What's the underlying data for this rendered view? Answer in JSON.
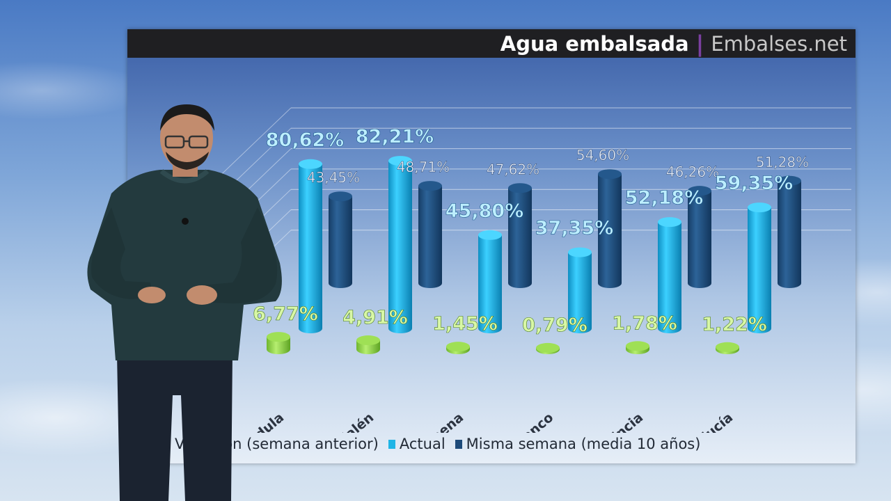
{
  "header": {
    "title": "Agua embalsada",
    "separator": "|",
    "brand": "Embalses.net"
  },
  "colors": {
    "variacion": "#8fcf4a",
    "actual": "#1fb5e6",
    "media": "#1d4a7a",
    "title_bar": "#1f1f22",
    "separator": "#7b3fa0"
  },
  "chart_data": {
    "type": "bar",
    "style": "3d-cylinder",
    "categories": [
      "Jándula",
      "Guadalén",
      "Guadalmena",
      "Tranco",
      "Provincia",
      "Andalucía"
    ],
    "category_labels": [
      "Jándula",
      "Guadalén",
      "Guadalmena",
      "Tranco",
      "Provincia",
      "Andalucía"
    ],
    "series": [
      {
        "name": "Variación (semana anterior)",
        "values": [
          6.77,
          4.91,
          1.45,
          0.79,
          1.78,
          1.22
        ],
        "labels": [
          "6,77%",
          "4,91%",
          "1,45%",
          "0,79%",
          "1,78%",
          "1,22%"
        ],
        "color": "#8fcf4a"
      },
      {
        "name": "Actual",
        "values": [
          80.62,
          82.21,
          45.8,
          37.35,
          52.18,
          59.35
        ],
        "labels": [
          "80,62%",
          "82,21%",
          "45,80%",
          "37,35%",
          "52,18%",
          "59,35%"
        ],
        "color": "#1fb5e6"
      },
      {
        "name": "Misma semana (media 10 años)",
        "values": [
          43.45,
          48.71,
          47.62,
          54.6,
          46.26,
          51.28
        ],
        "labels": [
          "43,45%",
          "48,71%",
          "47,62%",
          "54,60%",
          "46,26%",
          "51,28%"
        ],
        "color": "#1d4a7a"
      }
    ],
    "ylim": [
      0,
      100
    ],
    "grid": true,
    "legend": "bottom"
  },
  "legend": {
    "variacion_label": "Variación (semana anterior)",
    "actual_label": "Actual",
    "media_label": "Misma semana (media 10 años)"
  }
}
